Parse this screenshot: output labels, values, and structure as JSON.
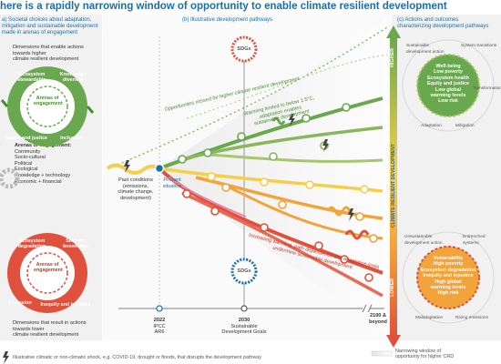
{
  "title": "here is a rapidly narrowing window of opportunity to enable climate resilient development",
  "left": {
    "section_a": [
      "a) Societal choices about adaptation,",
      "mitigation and sustainable development",
      "made in arenas of engagement"
    ],
    "enable_text": [
      "Dimensions that enable actions",
      "towards higher",
      "climate resilient development"
    ],
    "green_circle": {
      "center": [
        "Arenas of",
        "engagement"
      ],
      "ring": [
        "Ecosystem stewardship",
        "Knowledge diversity",
        "Equity and justice",
        "Inclusion"
      ]
    },
    "arenas_title": "Arenas of engagement:",
    "arenas_items": [
      "Community",
      "Socio-cultural",
      "Political",
      "Ecological",
      "Knowledge + technology",
      "Economic + financial"
    ],
    "red_circle": {
      "center": [
        "Arenas of",
        "engagement"
      ],
      "ring": [
        "Ecosystem degradation",
        "Singular knowledge",
        "Exclusion",
        "Inequity and injustice"
      ]
    },
    "lower_text": [
      "Dimensions that result in actions",
      "towards lower",
      "climate resilient development"
    ]
  },
  "middle": {
    "section_b": "(b) Illustrative development pathways",
    "missed": "Opportunities missed for higher climate resilient development",
    "warming_limited": [
      "Warming limited to below 1.5°C,",
      "adaptation enables",
      "sustainable development"
    ],
    "increasing": [
      "Increasing warming, path dependence and adaptation limits",
      "undermine sustainable development"
    ],
    "past_conditions": [
      "Past conditions",
      "(emissions,",
      "climate change,",
      "development)"
    ],
    "present": [
      "Present",
      "situation"
    ],
    "sdgs_badge": "SDGs",
    "axis": {
      "y2022": "2022",
      "ipcc": [
        "IPCC",
        "AR6"
      ],
      "y2030": "2030",
      "sdg_goals": [
        "Sustainable",
        "Development Goals"
      ],
      "y2100": [
        "2100 &",
        "beyond"
      ]
    }
  },
  "right": {
    "section_c": [
      "(c) Actions and outcomes",
      "characterizing development pathways"
    ],
    "higher": "HIGHER",
    "lower": "LOWER",
    "crd_label": "CLIMATE RESILIENT DEVELOPMENT",
    "top_circle": {
      "items": [
        "Well-being",
        "Low poverty",
        "Ecosystem health",
        "Equity and justice",
        "Low global",
        "warming levels",
        "Low risk"
      ],
      "ring": [
        "Sustainable development action",
        "System transitions",
        "Adaptation",
        "Mitigation",
        "Transformation"
      ]
    },
    "bottom_circle": {
      "items": [
        "Vulnerability",
        "High poverty",
        "Ecosystem degradation",
        "Inequity and injustice",
        "High global",
        "warming levels",
        "High risk"
      ],
      "ring": [
        "Unsustainable development action",
        "Entrenched systems",
        "Maladaptation",
        "Rising emissions"
      ]
    }
  },
  "legend": {
    "shock": "Illustrative climatic or non-climatic shock, e.g. COVID-19, drought or floods, that disrupts the development pathway",
    "window": [
      "Narrowing window of",
      "opportunity for higher CRD"
    ]
  },
  "colors": {
    "green": "#6aa84f",
    "red": "#e0513d",
    "orange": "#f2a33a",
    "yellow": "#f6cf4a",
    "blue": "#1b6fa8"
  }
}
